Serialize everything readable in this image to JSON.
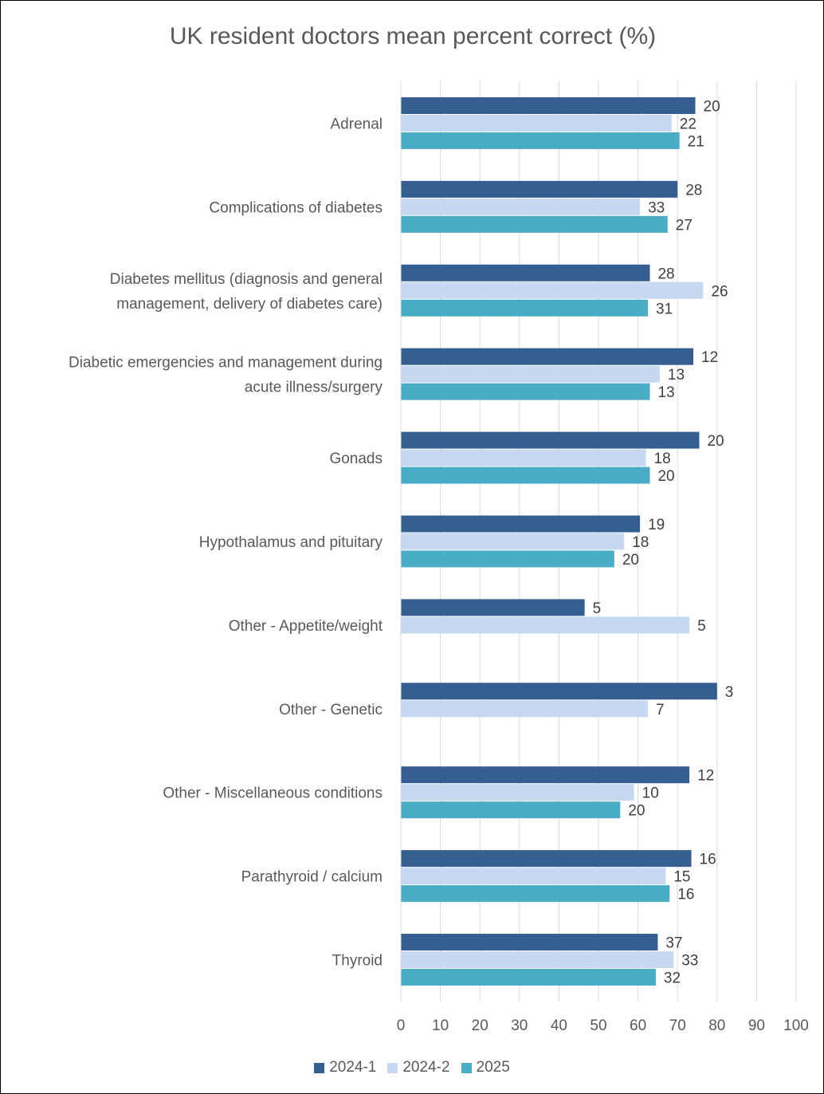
{
  "chart_data": {
    "type": "bar",
    "orientation": "horizontal",
    "title": "UK resident doctors mean percent correct (%)",
    "xlim": [
      0,
      100
    ],
    "x_ticks": [
      "0",
      "10",
      "20",
      "30",
      "40",
      "50",
      "60",
      "70",
      "80",
      "90",
      "100"
    ],
    "grid": "vertical",
    "legend_position": "bottom",
    "categories": [
      [
        "Adrenal"
      ],
      [
        "Complications of diabetes"
      ],
      [
        "Diabetes mellitus (diagnosis and general",
        "management, delivery of diabetes care)"
      ],
      [
        "Diabetic emergencies and management during",
        "acute illness/surgery"
      ],
      [
        "Gonads"
      ],
      [
        "Hypothalamus and pituitary"
      ],
      [
        "Other - Appetite/weight"
      ],
      [
        "Other - Genetic"
      ],
      [
        "Other - Miscellaneous conditions"
      ],
      [
        "Parathyroid / calcium"
      ],
      [
        "Thyroid"
      ]
    ],
    "series": [
      {
        "name": "2024-1",
        "color": "#355F91",
        "values": [
          74.5,
          70,
          63,
          74,
          75.5,
          60.5,
          46.5,
          80,
          73,
          73.5,
          65
        ],
        "labels": [
          "20",
          "28",
          "28",
          "12",
          "20",
          "19",
          "5",
          "3",
          "12",
          "16",
          "37"
        ]
      },
      {
        "name": "2024-2",
        "color": "#C6D9F1",
        "values": [
          68.5,
          60.5,
          76.5,
          65.5,
          62,
          56.5,
          73,
          62.5,
          59,
          67,
          69
        ],
        "labels": [
          "22",
          "33",
          "26",
          "13",
          "18",
          "18",
          "5",
          "7",
          "10",
          "15",
          "33"
        ]
      },
      {
        "name": "2025",
        "color": "#4BACC6",
        "values": [
          70.5,
          67.5,
          62.5,
          63,
          63,
          54,
          null,
          null,
          55.5,
          68,
          64.5
        ],
        "labels": [
          "21",
          "27",
          "31",
          "13",
          "20",
          "20",
          "",
          "",
          "20",
          "16",
          "32"
        ]
      }
    ]
  }
}
